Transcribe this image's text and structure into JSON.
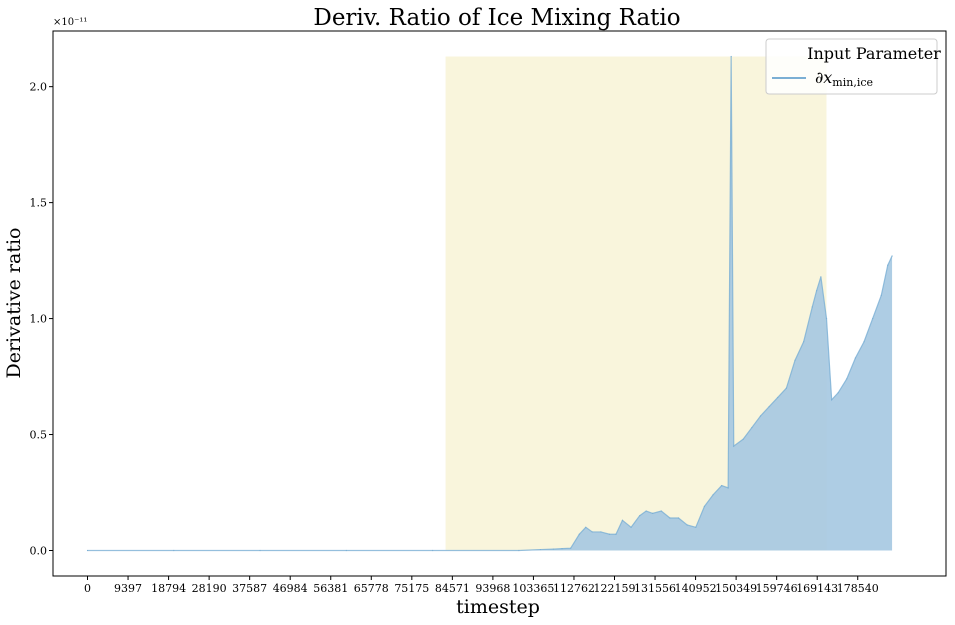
{
  "chart_data": {
    "type": "area",
    "title": "Deriv. Ratio of Ice Mixing Ratio",
    "xlabel": "timestep",
    "ylabel": "Derivative ratio",
    "y_offset_label": "×10⁻¹¹",
    "xlim": [
      -8000,
      199000
    ],
    "ylim": [
      -0.11,
      2.24
    ],
    "x_ticks": [
      0,
      9397,
      18794,
      28190,
      37587,
      46984,
      56381,
      65778,
      75175,
      84571,
      93968,
      103365,
      112762,
      122159,
      131556,
      140952,
      150349,
      159746,
      169143,
      178540
    ],
    "y_ticks": [
      0.0,
      0.5,
      1.0,
      1.5,
      2.0
    ],
    "y_tick_labels": [
      "0.0",
      "0.5",
      "1.0",
      "1.5",
      "2.0"
    ],
    "grid": false,
    "legend_placement": "top-right",
    "legend": {
      "title": "Input Parameter",
      "series_label": "∂x",
      "series_subscript": "min,ice"
    },
    "highlight_region": {
      "x_start": 83000,
      "x_end": 171300,
      "color": "#f9f5dc"
    },
    "series": [
      {
        "name": "∂x min,ice",
        "color": "#7bafd4",
        "fill_color": "#a5c8e1",
        "points": [
          [
            0,
            0.0
          ],
          [
            20000,
            0.0
          ],
          [
            40000,
            0.0
          ],
          [
            60000,
            0.0
          ],
          [
            80000,
            0.0
          ],
          [
            100000,
            0.0
          ],
          [
            105000,
            0.004
          ],
          [
            108000,
            0.006
          ],
          [
            110000,
            0.008
          ],
          [
            112000,
            0.01
          ],
          [
            114000,
            0.07
          ],
          [
            115500,
            0.1
          ],
          [
            117000,
            0.08
          ],
          [
            119000,
            0.08
          ],
          [
            121000,
            0.07
          ],
          [
            122500,
            0.07
          ],
          [
            124000,
            0.13
          ],
          [
            126000,
            0.1
          ],
          [
            128000,
            0.15
          ],
          [
            129500,
            0.17
          ],
          [
            131000,
            0.16
          ],
          [
            133000,
            0.17
          ],
          [
            135000,
            0.14
          ],
          [
            137000,
            0.14
          ],
          [
            139000,
            0.11
          ],
          [
            141000,
            0.1
          ],
          [
            143000,
            0.19
          ],
          [
            145000,
            0.24
          ],
          [
            147000,
            0.28
          ],
          [
            148500,
            0.27
          ],
          [
            149200,
            2.13
          ],
          [
            149800,
            0.45
          ],
          [
            152000,
            0.48
          ],
          [
            154000,
            0.53
          ],
          [
            156000,
            0.58
          ],
          [
            158000,
            0.62
          ],
          [
            160000,
            0.66
          ],
          [
            162000,
            0.7
          ],
          [
            164000,
            0.82
          ],
          [
            166000,
            0.9
          ],
          [
            168000,
            1.05
          ],
          [
            169000,
            1.12
          ],
          [
            170000,
            1.18
          ],
          [
            171300,
            1.0
          ],
          [
            172500,
            0.65
          ],
          [
            174000,
            0.68
          ],
          [
            176000,
            0.74
          ],
          [
            178000,
            0.83
          ],
          [
            180000,
            0.9
          ],
          [
            182000,
            1.0
          ],
          [
            184000,
            1.1
          ],
          [
            185500,
            1.23
          ],
          [
            186500,
            1.27
          ]
        ]
      }
    ]
  }
}
